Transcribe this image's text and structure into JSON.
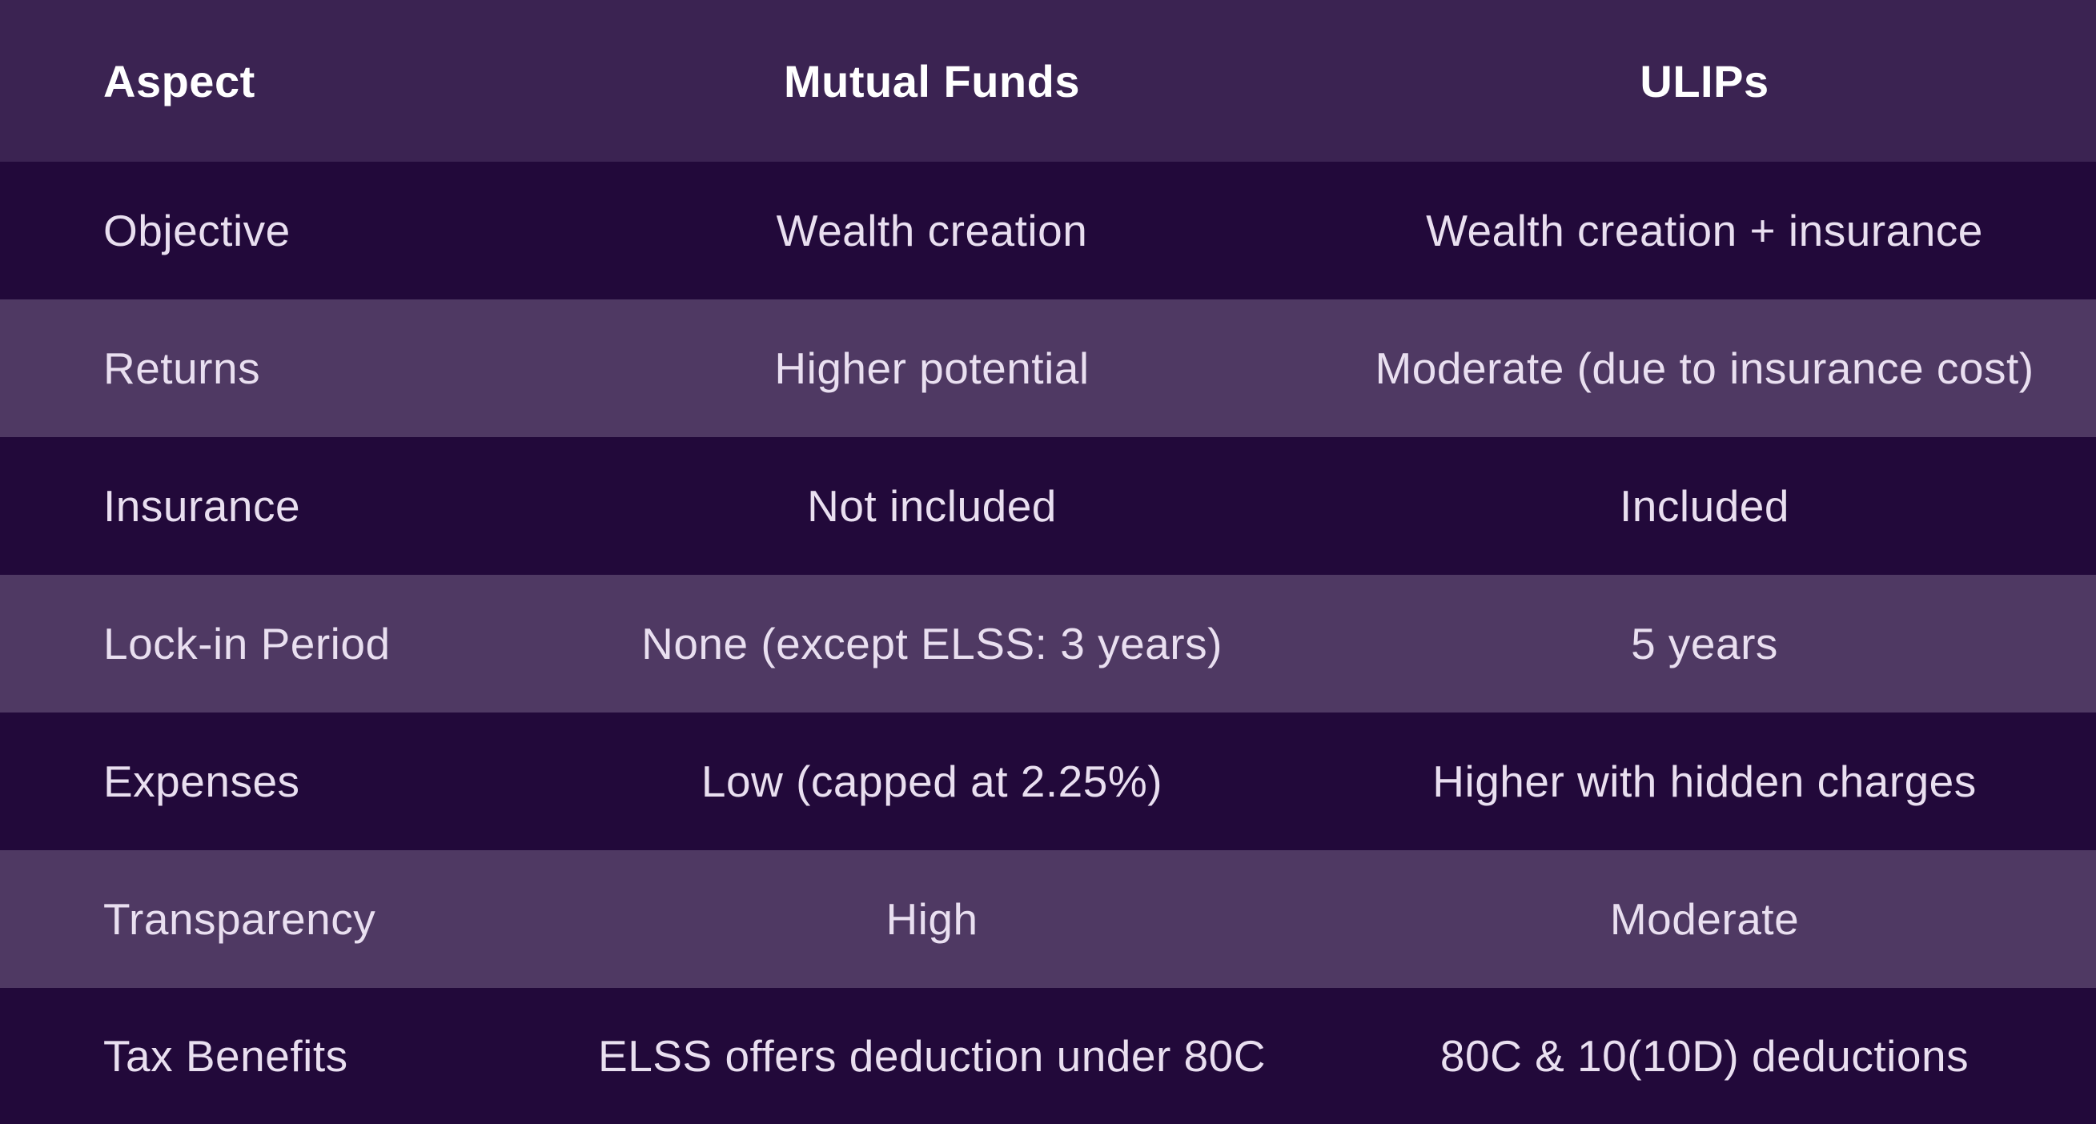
{
  "table": {
    "headers": [
      "Aspect",
      "Mutual Funds",
      "ULIPs"
    ],
    "rows": [
      [
        "Objective",
        "Wealth creation",
        "Wealth creation + insurance"
      ],
      [
        "Returns",
        "Higher potential",
        "Moderate (due to insurance cost)"
      ],
      [
        "Insurance",
        "Not included",
        "Included"
      ],
      [
        "Lock-in Period",
        "None (except ELSS: 3 years)",
        "5 years"
      ],
      [
        "Expenses",
        "Low (capped at 2.25%)",
        "Higher with hidden charges"
      ],
      [
        "Transparency",
        "High",
        "Moderate"
      ],
      [
        "Tax Benefits",
        "ELSS offers deduction under 80C",
        "80C & 10(10D) deductions"
      ]
    ]
  },
  "colors": {
    "header_bg": "#3b2352",
    "row_dark_bg": "#22093a",
    "row_light_bg": "#4f3963",
    "header_text": "#ffffff",
    "body_text": "#e9dff0"
  }
}
